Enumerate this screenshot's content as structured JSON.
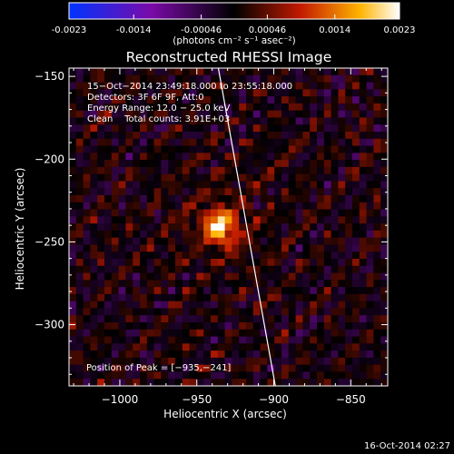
{
  "chart_data": {
    "type": "heatmap",
    "title": "Reconstructed RHESSI Image",
    "colorbar": {
      "ticks": [
        "-0.0023",
        "-0.0014",
        "-0.00046",
        "0.00046",
        "0.0014",
        "0.0023"
      ],
      "vmin": -0.0023,
      "vmax": 0.0023,
      "colormap": "blue-purple-black-red-yellow-white",
      "colors": [
        "#0033ff",
        "#7a0aa8",
        "#000000",
        "#c21a00",
        "#ffb300",
        "#ffffff"
      ]
    },
    "colorbar_label": "(photons cm⁻² s⁻¹ asec⁻²)",
    "xlabel": "Heliocentric X (arcsec)",
    "ylabel": "Heliocentric Y (arcsec)",
    "xlim": [
      -1033,
      -826
    ],
    "ylim": [
      -337,
      -145
    ],
    "xticks": [
      {
        "value": -1000,
        "label": "−1000"
      },
      {
        "value": -950,
        "label": "−950"
      },
      {
        "value": -900,
        "label": "−900"
      },
      {
        "value": -850,
        "label": "−850"
      }
    ],
    "yticks": [
      {
        "value": -150,
        "label": "−150"
      },
      {
        "value": -200,
        "label": "−200"
      },
      {
        "value": -250,
        "label": "−250"
      },
      {
        "value": -300,
        "label": "−300"
      }
    ],
    "info_lines": [
      "15−Oct−2014 23:49:18.000 to 23:55:18.000",
      "Detectors: 3F 6F 9F, Att:0",
      "Energy Range: 12.0 − 25.0 keV",
      "Clean    Total counts: 3.91E+03"
    ],
    "peak_text": "Position of Peak = [−935,−241]",
    "peak": {
      "x": -935,
      "y": -241
    },
    "limb_line": {
      "x": [
        -936,
        -899
      ],
      "y": [
        -145,
        -337
      ]
    },
    "grid": false
  },
  "footer": {
    "date": "16-Oct-2014 02:27"
  }
}
